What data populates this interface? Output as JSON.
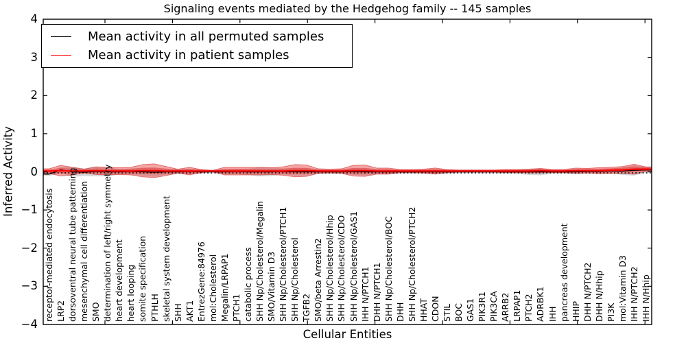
{
  "title": "Signaling events mediated by the Hedgehog family -- 145 samples",
  "legend": {
    "items": [
      {
        "label": "Mean activity in all permuted samples",
        "color": "#000000"
      },
      {
        "label": "Mean activity in patient samples",
        "color": "#ff0000"
      }
    ]
  },
  "colors": {
    "patient_line": "#ff0000",
    "permuted_line": "#000000",
    "patient_band_fill": "rgba(230,40,40,0.42)",
    "patient_band_edge": "rgba(210,45,45,0.6)",
    "permuted_band_fill": "rgba(100,100,100,0.25)",
    "zero_line": "#000000",
    "axis": "#000000"
  },
  "chart_data": {
    "type": "area",
    "title": "Signaling events mediated by the Hedgehog family -- 145 samples",
    "xlabel": "Cellular Entities",
    "ylabel": "Inferred Activity",
    "ylim": [
      -4,
      4
    ],
    "ytick_labels": [
      "4",
      "3",
      "2",
      "1",
      "0",
      "−1",
      "−2",
      "−3",
      "−4"
    ],
    "ytick_values": [
      4,
      3,
      2,
      1,
      0,
      -1,
      -2,
      -3,
      -4
    ],
    "grid": false,
    "legend_position": "upper left",
    "sample_count_in_title": "145",
    "categories": [
      "receptor-mediated endocytosis",
      "LRP2",
      "dorsoventral neural tube patterning",
      "mesenchymal cell differentiation",
      "SMO",
      "determination of left/right symmetry",
      "heart development",
      "heart looping",
      "somite specification",
      "PTHLH",
      "skeletal system development",
      "SHH",
      "AKT1",
      "EntrezGene:84976",
      "mol:Cholesterol",
      "Megalin/LRPAP1",
      "PTCH1",
      "catabolic process",
      "SHH Np/Cholesterol/Megalin",
      "SMO/Vitamin D3",
      "SHH Np/Cholesterol/PTCH1",
      "SHH Np/Cholesterol",
      "TGFB2",
      "SMO/beta Arrestin2",
      "SHH Np/Cholesterol/Hhip",
      "SHH Np/Cholesterol/CDO",
      "SHH Np/Cholesterol/GAS1",
      "IHH N/PTCH1",
      "DHH N/PTCH1",
      "SHH Np/Cholesterol/BOC",
      "DHH",
      "SHH Np/Cholesterol/PTCH2",
      "HHAT",
      "CDON",
      "STIL",
      "BOC",
      "GAS1",
      "PIK3R1",
      "PIK3CA",
      "ARRB2",
      "LRPAP1",
      "PTCH2",
      "ADRBK1",
      "IHH",
      "pancreas development",
      "HHIP",
      "DHH N/PTCH2",
      "DHH N/Hhip",
      "PI3K",
      "mol:Vitamin D3",
      "IHH N/PTCH2",
      "IHH N/Hhip"
    ],
    "series": [
      {
        "name": "Mean activity in all permuted samples",
        "type": "line",
        "color": "#000000",
        "values": [
          -0.06,
          0.05,
          0.0,
          -0.01,
          0.01,
          0.0,
          0.0,
          0.01,
          0.0,
          -0.01,
          0.0,
          0.0,
          0.01,
          0.0,
          0.0,
          0.0,
          0.01,
          0.0,
          0.0,
          0.0,
          0.01,
          0.0,
          0.0,
          0.0,
          0.0,
          0.0,
          0.01,
          0.0,
          0.0,
          0.0,
          0.0,
          0.0,
          0.0,
          0.0,
          0.0,
          0.0,
          0.0,
          0.0,
          0.0,
          0.0,
          0.0,
          0.0,
          0.0,
          0.0,
          0.0,
          0.0,
          0.01,
          0.01,
          0.02,
          0.02,
          0.04,
          0.05
        ]
      },
      {
        "name": "Mean activity in patient samples",
        "type": "line",
        "color": "#ff0000",
        "values": [
          0.02,
          0.03,
          0.02,
          0.02,
          0.03,
          0.02,
          0.02,
          0.02,
          0.03,
          0.03,
          0.02,
          0.02,
          0.02,
          0.02,
          0.02,
          0.02,
          0.02,
          0.02,
          0.02,
          0.02,
          0.02,
          0.03,
          0.03,
          0.02,
          0.02,
          0.02,
          0.03,
          0.03,
          0.02,
          0.02,
          0.02,
          0.02,
          0.02,
          0.02,
          0.02,
          0.02,
          0.02,
          0.02,
          0.02,
          0.02,
          0.02,
          0.02,
          0.03,
          0.02,
          0.02,
          0.03,
          0.03,
          0.03,
          0.04,
          0.05,
          0.07,
          0.07
        ]
      },
      {
        "name": "Patient samples spread",
        "type": "band_halfwidth",
        "color": "rgba(230,40,40,0.42)",
        "values": [
          0.06,
          0.14,
          0.1,
          0.05,
          0.1,
          0.1,
          0.09,
          0.1,
          0.16,
          0.18,
          0.12,
          0.05,
          0.1,
          0.04,
          0.02,
          0.1,
          0.1,
          0.1,
          0.1,
          0.09,
          0.11,
          0.16,
          0.15,
          0.06,
          0.05,
          0.06,
          0.14,
          0.15,
          0.08,
          0.08,
          0.04,
          0.04,
          0.05,
          0.08,
          0.04,
          0.03,
          0.03,
          0.03,
          0.03,
          0.04,
          0.04,
          0.05,
          0.06,
          0.04,
          0.04,
          0.07,
          0.06,
          0.08,
          0.08,
          0.09,
          0.13,
          0.06
        ]
      },
      {
        "name": "Permuted samples spread",
        "type": "band_halfwidth",
        "color": "rgba(100,100,100,0.25)",
        "values": [
          0.05,
          0.08,
          0.13,
          0.1,
          0.13,
          0.12,
          0.07,
          0.08,
          0.1,
          0.12,
          0.08,
          0.06,
          0.07,
          0.05,
          0.04,
          0.07,
          0.07,
          0.08,
          0.12,
          0.11,
          0.08,
          0.1,
          0.1,
          0.05,
          0.05,
          0.05,
          0.09,
          0.1,
          0.06,
          0.06,
          0.05,
          0.05,
          0.05,
          0.06,
          0.05,
          0.04,
          0.04,
          0.04,
          0.04,
          0.05,
          0.05,
          0.08,
          0.09,
          0.05,
          0.05,
          0.06,
          0.05,
          0.06,
          0.06,
          0.1,
          0.14,
          0.07
        ]
      }
    ],
    "zero_reference_line": {
      "style": "dotted",
      "color": "#000000",
      "y": 0
    }
  }
}
